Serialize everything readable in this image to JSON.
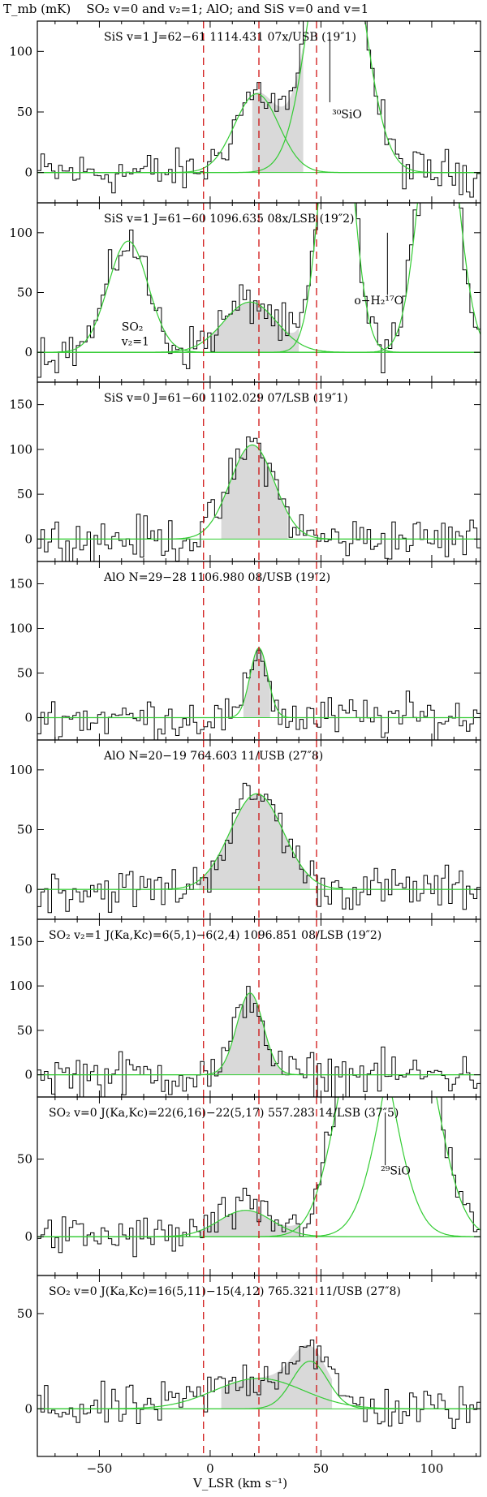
{
  "header": {
    "ylabel": "T_mb (mK)",
    "title": "SO₂ v=0 and v₂=1; AlO; and SiS v=0 and v=1"
  },
  "xaxis": {
    "label": "V_LSR (km s⁻¹)",
    "ticks": [
      "−50",
      "0",
      "50",
      "100"
    ]
  },
  "colors": {
    "data": "#000000",
    "fit": "#33cc33",
    "fill": "#d9d9d9",
    "vline": "#cc0000"
  },
  "chart_data": [
    {
      "type": "line",
      "label": "SiS v=1 J=62−61   1114.431  07x/USB  (19″1)",
      "xlim": [
        -78,
        122
      ],
      "ylim": [
        -25,
        125
      ],
      "yticks": [
        0,
        50,
        100
      ],
      "vlines": [
        -3,
        22,
        48
      ],
      "fill_range": [
        19,
        42
      ],
      "fits": [
        {
          "a": 65,
          "c": 21,
          "s": 10
        },
        {
          "a": 250,
          "c": 57,
          "s": 11
        }
      ],
      "annotations": [
        {
          "text": "³⁰SiO",
          "x": 55,
          "y": 45
        }
      ],
      "markers": [
        {
          "x": 54,
          "y0": 58,
          "y1": 110
        }
      ]
    },
    {
      "type": "line",
      "label": "SiS v=1 J=61−60   1096.635  08x/LSB  (19″2)",
      "xlim": [
        -78,
        122
      ],
      "ylim": [
        -25,
        125
      ],
      "yticks": [
        0,
        50,
        100
      ],
      "vlines": [
        -3,
        22,
        48
      ],
      "fill_range": [
        0,
        40
      ],
      "fits": [
        {
          "a": 93,
          "c": -37,
          "s": 9
        },
        {
          "a": 42,
          "c": 18,
          "s": 12
        },
        {
          "a": 250,
          "c": 57,
          "s": 7
        },
        {
          "a": 250,
          "c": 103,
          "s": 8
        }
      ],
      "annotations": [
        {
          "text": "SO₂",
          "x": -40,
          "y": 18
        },
        {
          "text": "v₂=1",
          "x": -40,
          "y": 6
        },
        {
          "text": "o−H₂¹⁷O",
          "x": 65,
          "y": 40
        }
      ],
      "markers": [
        {
          "x": 80,
          "y0": 48,
          "y1": 100
        }
      ]
    },
    {
      "type": "line",
      "label": "SiS v=0 J=61−60   1102.029  07/LSB  (19″1)",
      "xlim": [
        -78,
        122
      ],
      "ylim": [
        -25,
        175
      ],
      "yticks": [
        0,
        50,
        100,
        150
      ],
      "vlines": [
        -3,
        22,
        48
      ],
      "fill_range": [
        5,
        35
      ],
      "fits": [
        {
          "a": 105,
          "c": 19,
          "s": 10
        }
      ],
      "annotations": [],
      "markers": []
    },
    {
      "type": "line",
      "label": "AlO N=29−28   1106.980  08/USB  (19″2)",
      "xlim": [
        -78,
        122
      ],
      "ylim": [
        -25,
        175
      ],
      "yticks": [
        0,
        50,
        100,
        150
      ],
      "vlines": [
        -3,
        22,
        48
      ],
      "fill_range": [
        15,
        27
      ],
      "fits": [
        {
          "a": 78,
          "c": 22,
          "s": 4
        }
      ],
      "annotations": [],
      "markers": []
    },
    {
      "type": "line",
      "label": "AlO N=20−19    764.603  11/USB  (27″8)",
      "xlim": [
        -78,
        122
      ],
      "ylim": [
        -25,
        125
      ],
      "yticks": [
        0,
        50,
        100
      ],
      "vlines": [
        -3,
        22,
        48
      ],
      "fill_range": [
        -5,
        45
      ],
      "fits": [
        {
          "a": 80,
          "c": 21,
          "s": 12
        }
      ],
      "annotations": [],
      "markers": []
    },
    {
      "type": "line",
      "label": "SO₂ v₂=1   J(Ka,Kc)=6(5,1)−6(2,4)   1096.851  08/LSB  (19″2)",
      "xlim": [
        -78,
        122
      ],
      "ylim": [
        -25,
        175
      ],
      "yticks": [
        0,
        50,
        100,
        150
      ],
      "vlines": [
        -3,
        22,
        48
      ],
      "fill_range": [
        0,
        38
      ],
      "fits": [
        {
          "a": 92,
          "c": 18,
          "s": 6
        }
      ],
      "annotations": [],
      "markers": []
    },
    {
      "type": "line",
      "label": "SO₂ v=0  J(Ka,Kc)=22(6,16)−22(5,17)   557.283  14/LSB  (37″5)",
      "xlim": [
        -78,
        122
      ],
      "ylim": [
        -25,
        90
      ],
      "yticks": [
        0,
        50
      ],
      "vlines": [
        -3,
        22,
        48
      ],
      "fill_range": [
        -5,
        40
      ],
      "fits": [
        {
          "a": 17,
          "c": 16,
          "s": 12
        },
        {
          "a": 150,
          "c": 70,
          "s": 12
        },
        {
          "a": 150,
          "c": 90,
          "s": 12
        }
      ],
      "annotations": [
        {
          "text": "²⁹SiO",
          "x": 77,
          "y": 40
        }
      ],
      "markers": [
        {
          "x": 79,
          "y0": 46,
          "y1": 80
        }
      ]
    },
    {
      "type": "line",
      "label": "SO₂ v=0  J(Ka,Kc)=16(5,11)−15(4,12)   765.321  11/USB  (27″8)",
      "xlim": [
        -78,
        122
      ],
      "ylim": [
        -25,
        70
      ],
      "yticks": [
        0,
        50
      ],
      "vlines": [
        -3,
        22,
        48
      ],
      "fill_range": [
        5,
        55
      ],
      "fits": [
        {
          "a": 16,
          "c": 22,
          "s": 20
        },
        {
          "a": 25,
          "c": 45,
          "s": 8
        }
      ],
      "annotations": [],
      "markers": []
    }
  ]
}
